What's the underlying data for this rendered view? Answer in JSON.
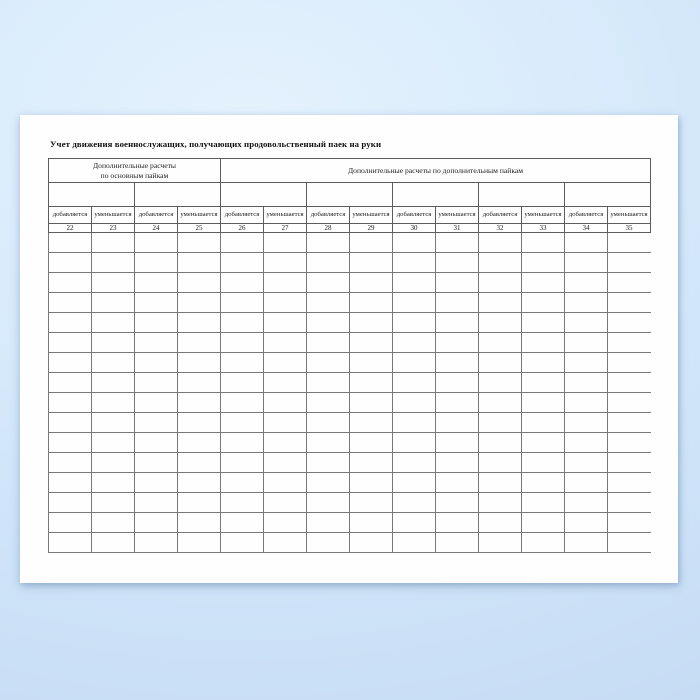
{
  "document": {
    "title": "Учет движения военнослужащих, получающих продовольственный паек на руки",
    "table": {
      "group_headers": [
        {
          "lines": [
            "Дополнительные расчеты",
            "по основным пайкам"
          ],
          "colspan": 4
        },
        {
          "lines": [
            "Дополнительные расчеты по дополнительным пайкам"
          ],
          "colspan": 10
        }
      ],
      "pair_row": {
        "cells": [
          "",
          "",
          "",
          "",
          "",
          "",
          ""
        ],
        "colspan": 2
      },
      "column_labels": [
        "добавляется",
        "уменьшается",
        "добавляется",
        "уменьшается",
        "добавляется",
        "уменьшается",
        "добавляется",
        "уменьшается",
        "добавляется",
        "уменьшается",
        "добавляется",
        "уменьшается",
        "добавляется",
        "уменьшается"
      ],
      "column_numbers": [
        "22",
        "23",
        "24",
        "25",
        "26",
        "27",
        "28",
        "29",
        "30",
        "31",
        "32",
        "33",
        "34",
        "35"
      ],
      "body": {
        "rows": 16,
        "columns": 14,
        "cell_value": ""
      }
    }
  },
  "colors": {
    "background_blue": "#d6e9fb",
    "paper": "#fefefe",
    "grid_line": "#6f6f6f",
    "text": "#1a1a1a"
  }
}
